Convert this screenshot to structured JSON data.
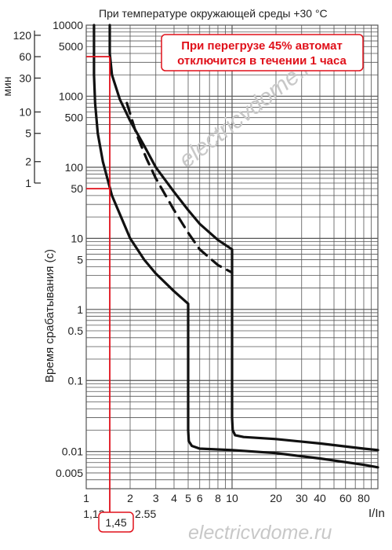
{
  "chart_data": {
    "type": "line",
    "title": "При температуре окружающей среды +30 °С",
    "ylabel": "Время срабатывания (с)",
    "xlabel": "I/In",
    "x_scale": "log",
    "y_scale": "log",
    "xlim": [
      1,
      100
    ],
    "ylim": [
      0.003,
      10000
    ],
    "x_ticks": [
      {
        "value": 1,
        "label": "1"
      },
      {
        "value": 2,
        "label": "2"
      },
      {
        "value": 3,
        "label": "3"
      },
      {
        "value": 4,
        "label": "4"
      },
      {
        "value": 5,
        "label": "5"
      },
      {
        "value": 6,
        "label": "6"
      },
      {
        "value": 8,
        "label": "8"
      },
      {
        "value": 10,
        "label": "10"
      },
      {
        "value": 20,
        "label": "20"
      },
      {
        "value": 30,
        "label": "30"
      },
      {
        "value": 40,
        "label": "40"
      },
      {
        "value": 60,
        "label": "60"
      },
      {
        "value": 80,
        "label": "80"
      }
    ],
    "x_extra_labels": [
      {
        "value": 1.13,
        "label": "1,13"
      },
      {
        "value": 2.55,
        "label": "2.55"
      }
    ],
    "y_ticks": [
      {
        "value": 10000,
        "label": "10000"
      },
      {
        "value": 5000,
        "label": "5000"
      },
      {
        "value": 1000,
        "label": "1000"
      },
      {
        "value": 500,
        "label": "500"
      },
      {
        "value": 100,
        "label": "100"
      },
      {
        "value": 50,
        "label": "50"
      },
      {
        "value": 10,
        "label": "10"
      },
      {
        "value": 5,
        "label": "5"
      },
      {
        "value": 1,
        "label": "1"
      },
      {
        "value": 0.5,
        "label": "0.5"
      },
      {
        "value": 0.1,
        "label": "0.1"
      },
      {
        "value": 0.01,
        "label": "0.01"
      },
      {
        "value": 0.005,
        "label": "0.005"
      }
    ],
    "minutes_axis": {
      "label": "мин",
      "ticks": [
        {
          "value": 120,
          "label": "120"
        },
        {
          "value": 60,
          "label": "60"
        },
        {
          "value": 30,
          "label": "30"
        },
        {
          "value": 10,
          "label": "10"
        },
        {
          "value": 5,
          "label": "5"
        },
        {
          "value": 2,
          "label": "2"
        },
        {
          "value": 1,
          "label": "1"
        }
      ]
    },
    "series": [
      {
        "style": "solid",
        "x": [
          1.13,
          1.13,
          1.15,
          1.2,
          1.3,
          1.5,
          2.0,
          2.5,
          3.0,
          4.0,
          5.0,
          5.0,
          5.05,
          5.3,
          6,
          10,
          20,
          40,
          80,
          100
        ],
        "y": [
          10000,
          2000,
          800,
          300,
          120,
          40,
          10,
          5,
          3.2,
          1.8,
          1.2,
          0.02,
          0.014,
          0.012,
          0.011,
          0.0105,
          0.0095,
          0.008,
          0.0065,
          0.006
        ]
      },
      {
        "style": "solid",
        "x": [
          1.45,
          1.45,
          1.5,
          1.7,
          2.0,
          2.5,
          3.0,
          4.0,
          5.0,
          6.0,
          8.0,
          10.0,
          10.0,
          10.1,
          10.5,
          12,
          20,
          40,
          80,
          100
        ],
        "y": [
          10000,
          4000,
          2000,
          900,
          450,
          200,
          100,
          45,
          25,
          16,
          9.5,
          7,
          0.03,
          0.02,
          0.017,
          0.016,
          0.015,
          0.013,
          0.011,
          0.0105
        ]
      },
      {
        "style": "dashed",
        "x": [
          1.9,
          2.2,
          2.6,
          3.0,
          4.0,
          5.0,
          6.0,
          8.0,
          10.0
        ],
        "y": [
          800,
          300,
          130,
          70,
          25,
          12,
          7,
          4.2,
          3.3
        ]
      }
    ],
    "highlight": {
      "x": 1.45,
      "x_label": "1,45",
      "y": 50,
      "y_top": 3600
    }
  },
  "annotation": {
    "line1": "При перегрузе 45% автомат",
    "line2": "отключится в течении 1 часа"
  },
  "watermark": "electricvdome.ru",
  "watermark_bottom": "electricvdome.ru",
  "colors": {
    "curve": "#111111",
    "grid": "#555555",
    "highlight": "#e0101a",
    "watermark": "#c8c8c8"
  }
}
